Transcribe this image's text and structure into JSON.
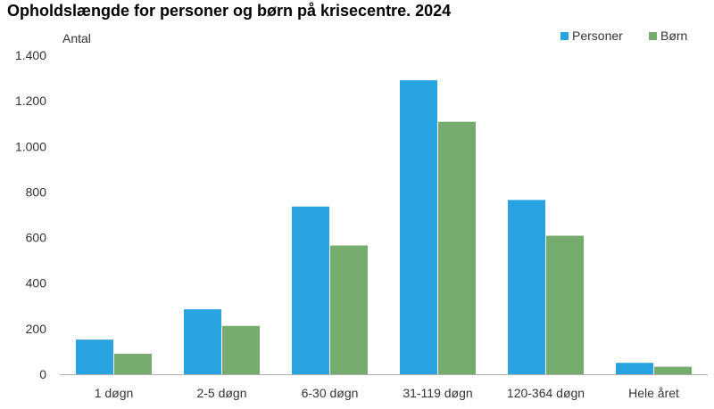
{
  "chart_data": {
    "type": "bar",
    "title": "Opholdslængde for personer og børn på krisecentre. 2024",
    "ylabel": "Antal",
    "xlabel": "",
    "categories": [
      "1 døgn",
      "2-5 døgn",
      "6-30 døgn",
      "31-119 døgn",
      "120-364 døgn",
      "Hele året"
    ],
    "series": [
      {
        "name": "Personer",
        "color": "#29a3e0",
        "values": [
          152,
          285,
          736,
          1290,
          765,
          50
        ]
      },
      {
        "name": "Børn",
        "color": "#76ab6e",
        "values": [
          90,
          212,
          565,
          1108,
          608,
          33
        ]
      }
    ],
    "ylim": [
      0,
      1400
    ],
    "yticks": [
      0,
      200,
      400,
      600,
      800,
      1000,
      1200,
      1400
    ],
    "ytick_labels": [
      "0",
      "200",
      "400",
      "600",
      "800",
      "1.000",
      "1.200",
      "1.400"
    ],
    "grid": false,
    "legend_position": "top-right"
  }
}
